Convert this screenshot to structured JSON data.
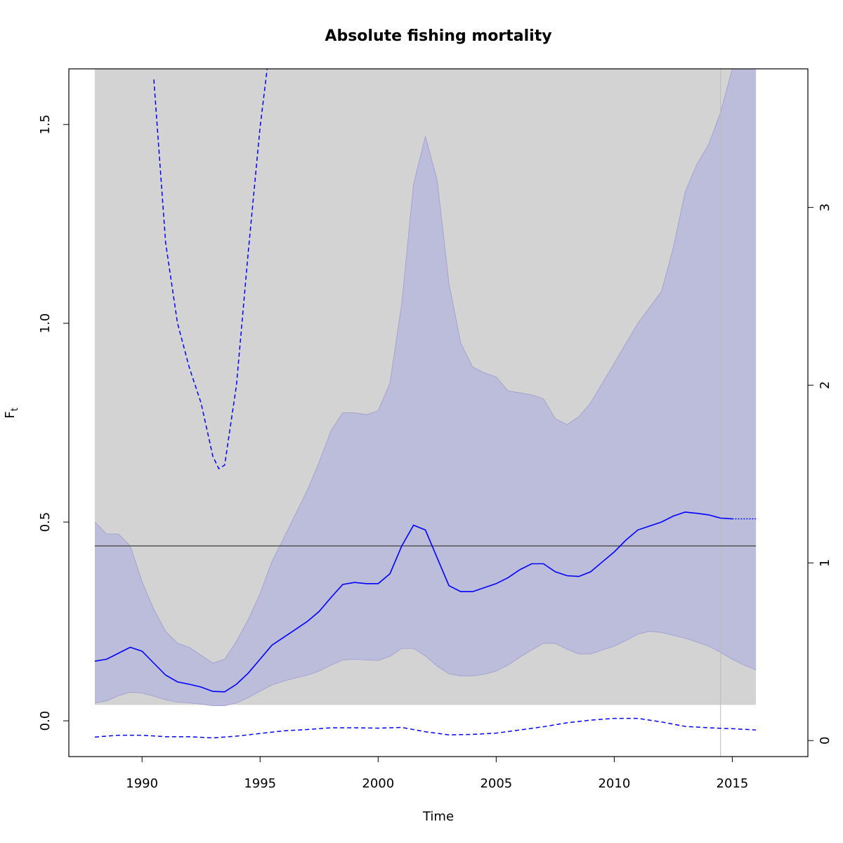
{
  "chart_data": {
    "type": "line",
    "title": "Absolute fishing mortality",
    "xlabel": "Time",
    "ylabel": "F",
    "ylabel_subscript": "t",
    "xlim": [
      1986.9,
      2018.2
    ],
    "ylim": [
      -0.09,
      1.64
    ],
    "xticks": [
      1990,
      1995,
      2000,
      2005,
      2010,
      2015
    ],
    "yticks": [
      0.0,
      0.5,
      1.0,
      1.5
    ],
    "right_axis": {
      "ylim": [
        -0.09,
        3.78
      ],
      "ticks": [
        0,
        1,
        2,
        3
      ]
    },
    "colors": {
      "background_band": "#d3d3d3",
      "ci_band": "#bcbdda",
      "ci_edge": "#9a9bd0",
      "estimate": "#0000ff",
      "reference_line": "#555555",
      "vertical_line": "#bbbbbb"
    },
    "background_band": {
      "x_start": 1988,
      "x_end": 2016,
      "y_bottom": 0.04,
      "y_top": 1.64
    },
    "reference_line_y": 0.44,
    "vertical_line_x": 2014.5,
    "series": [
      {
        "role": "estimate",
        "style": "solid",
        "x": [
          1988,
          1988.5,
          1989,
          1989.5,
          1990,
          1990.5,
          1991,
          1991.5,
          1992,
          1992.5,
          1993,
          1993.5,
          1994,
          1994.5,
          1995,
          1995.5,
          1996,
          1996.5,
          1997,
          1997.5,
          1998,
          1998.5,
          1999,
          1999.5,
          2000,
          2000.5,
          2001,
          2001.5,
          2002,
          2002.5,
          2003,
          2003.5,
          2004,
          2004.5,
          2005,
          2005.5,
          2006,
          2006.5,
          2007,
          2007.5,
          2008,
          2008.5,
          2009,
          2009.5,
          2010,
          2010.5,
          2011,
          2011.5,
          2012,
          2012.5,
          2013,
          2013.5,
          2014,
          2014.5,
          2015
        ],
        "y": [
          0.15,
          0.155,
          0.17,
          0.185,
          0.175,
          0.145,
          0.115,
          0.098,
          0.092,
          0.085,
          0.074,
          0.073,
          0.092,
          0.12,
          0.155,
          0.19,
          0.21,
          0.23,
          0.25,
          0.275,
          0.31,
          0.343,
          0.348,
          0.345,
          0.345,
          0.37,
          0.44,
          0.492,
          0.48,
          0.41,
          0.34,
          0.325,
          0.325,
          0.335,
          0.345,
          0.36,
          0.38,
          0.395,
          0.395,
          0.375,
          0.365,
          0.363,
          0.375,
          0.4,
          0.425,
          0.455,
          0.48,
          0.49,
          0.5,
          0.515,
          0.525,
          0.522,
          0.518,
          0.51,
          0.508
        ]
      },
      {
        "role": "projection",
        "style": "dotted",
        "x": [
          2015,
          2015.5,
          2016
        ],
        "y": [
          0.508,
          0.508,
          0.508
        ]
      },
      {
        "role": "ci_upper",
        "x": [
          1988,
          1988.5,
          1989,
          1989.5,
          1990,
          1990.5,
          1991,
          1991.5,
          1992,
          1992.5,
          1993,
          1993.5,
          1994,
          1994.5,
          1995,
          1995.5,
          1996,
          1996.5,
          1997,
          1997.5,
          1998,
          1998.5,
          1999,
          1999.5,
          2000,
          2000.5,
          2001,
          2001.5,
          2002,
          2002.5,
          2003,
          2003.5,
          2004,
          2004.5,
          2005,
          2005.5,
          2006,
          2006.5,
          2007,
          2007.5,
          2008,
          2008.5,
          2009,
          2009.5,
          2010,
          2010.5,
          2011,
          2011.5,
          2012,
          2012.5,
          2013,
          2013.5,
          2014,
          2014.5,
          2015,
          2015.5,
          2016
        ],
        "y": [
          0.5,
          0.47,
          0.47,
          0.44,
          0.35,
          0.28,
          0.225,
          0.195,
          0.185,
          0.165,
          0.145,
          0.155,
          0.2,
          0.255,
          0.32,
          0.4,
          0.46,
          0.52,
          0.58,
          0.65,
          0.73,
          0.775,
          0.775,
          0.77,
          0.78,
          0.85,
          1.05,
          1.35,
          1.47,
          1.36,
          1.1,
          0.95,
          0.89,
          0.875,
          0.865,
          0.83,
          0.825,
          0.82,
          0.81,
          0.76,
          0.745,
          0.765,
          0.8,
          0.85,
          0.9,
          0.95,
          1.0,
          1.04,
          1.08,
          1.19,
          1.33,
          1.4,
          1.45,
          1.53,
          1.64,
          1.64,
          1.64
        ]
      },
      {
        "role": "ci_lower",
        "x": [
          1988,
          1988.5,
          1989,
          1989.5,
          1990,
          1990.5,
          1991,
          1991.5,
          1992,
          1992.5,
          1993,
          1993.5,
          1994,
          1994.5,
          1995,
          1995.5,
          1996,
          1996.5,
          1997,
          1997.5,
          1998,
          1998.5,
          1999,
          1999.5,
          2000,
          2000.5,
          2001,
          2001.5,
          2002,
          2002.5,
          2003,
          2003.5,
          2004,
          2004.5,
          2005,
          2005.5,
          2006,
          2006.5,
          2007,
          2007.5,
          2008,
          2008.5,
          2009,
          2009.5,
          2010,
          2010.5,
          2011,
          2011.5,
          2012,
          2012.5,
          2013,
          2013.5,
          2014,
          2014.5,
          2015,
          2015.5,
          2016
        ],
        "y": [
          0.045,
          0.05,
          0.063,
          0.072,
          0.07,
          0.062,
          0.053,
          0.047,
          0.045,
          0.042,
          0.038,
          0.038,
          0.045,
          0.058,
          0.075,
          0.09,
          0.1,
          0.108,
          0.115,
          0.125,
          0.14,
          0.153,
          0.155,
          0.153,
          0.152,
          0.162,
          0.182,
          0.182,
          0.163,
          0.138,
          0.118,
          0.113,
          0.113,
          0.117,
          0.125,
          0.14,
          0.16,
          0.178,
          0.195,
          0.195,
          0.18,
          0.168,
          0.168,
          0.178,
          0.188,
          0.202,
          0.218,
          0.225,
          0.222,
          0.215,
          0.208,
          0.198,
          0.188,
          0.172,
          0.155,
          0.14,
          0.128
        ]
      },
      {
        "role": "right_axis_upper",
        "axis": "right",
        "style": "dashed",
        "x": [
          1990.5,
          1991,
          1991.5,
          1992,
          1992.5,
          1993,
          1993.25,
          1993.5,
          1994,
          1994.5,
          1995,
          1995.3
        ],
        "y": [
          3.72,
          2.8,
          2.35,
          2.1,
          1.9,
          1.6,
          1.53,
          1.55,
          2.0,
          2.75,
          3.45,
          3.78
        ]
      },
      {
        "role": "right_axis_lower",
        "axis": "right",
        "style": "dashed",
        "x": [
          1988,
          1989,
          1990,
          1991,
          1992,
          1993,
          1994,
          1995,
          1996,
          1997,
          1998,
          1999,
          2000,
          2001,
          2002,
          2003,
          2004,
          2005,
          2006,
          2007,
          2008,
          2009,
          2010,
          2011,
          2012,
          2013,
          2014,
          2015,
          2016
        ],
        "y": [
          0.02,
          0.03,
          0.03,
          0.022,
          0.022,
          0.015,
          0.025,
          0.04,
          0.055,
          0.062,
          0.072,
          0.072,
          0.07,
          0.074,
          0.05,
          0.032,
          0.035,
          0.042,
          0.06,
          0.078,
          0.1,
          0.115,
          0.125,
          0.125,
          0.105,
          0.08,
          0.072,
          0.067,
          0.06
        ]
      }
    ]
  }
}
